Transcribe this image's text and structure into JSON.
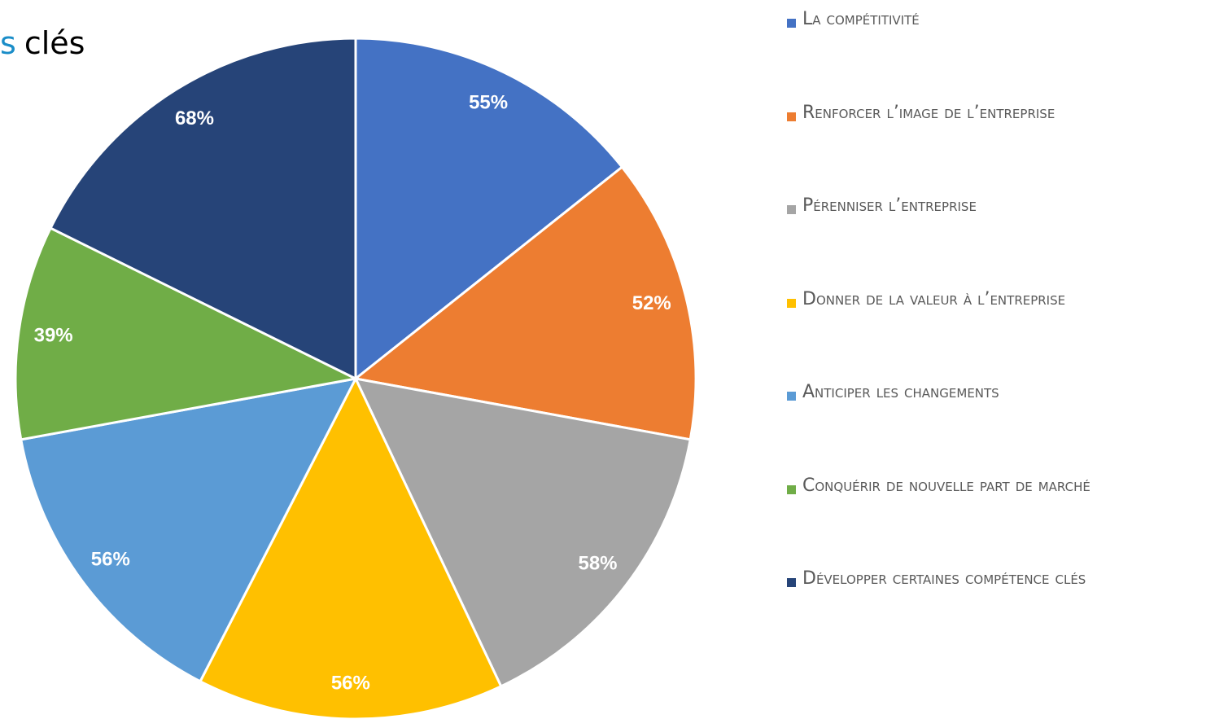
{
  "chart_data": {
    "type": "pie",
    "title_parts": [
      "s",
      "clés"
    ],
    "title_colors": [
      "#1a8dc8",
      "#000000"
    ],
    "categories": [
      "La compétitivité",
      "Renforcer l’image de l’entreprise",
      "Pérenniser l’entreprise",
      "Donner de la valeur à l’entreprise",
      "Anticiper les changements",
      "Conquérir de nouvelle part de marché",
      "Développer certaines compétence clés"
    ],
    "values": [
      55,
      52,
      58,
      56,
      56,
      39,
      68
    ],
    "value_labels": [
      "55%",
      "52%",
      "58%",
      "56%",
      "56%",
      "39%",
      "68%"
    ],
    "colors": [
      "#4472c4",
      "#ed7d31",
      "#a5a5a5",
      "#ffc000",
      "#5b9bd5",
      "#70ad47",
      "#264478"
    ],
    "legend": "right"
  }
}
